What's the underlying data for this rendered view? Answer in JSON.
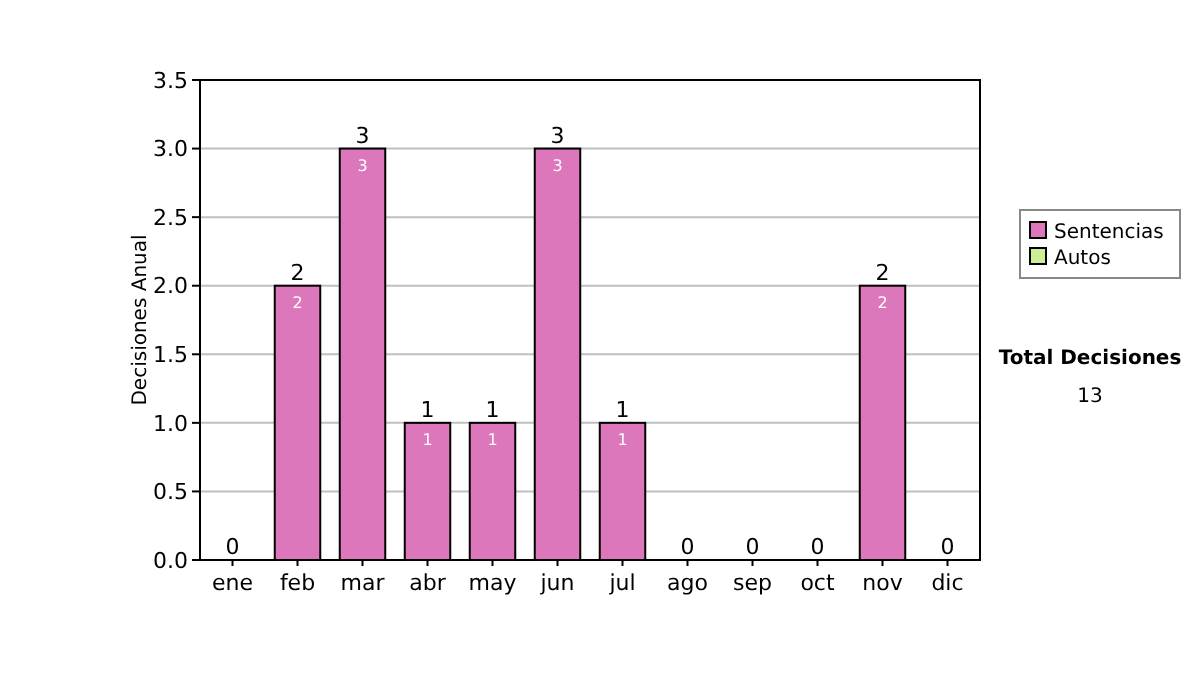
{
  "chart_data": {
    "type": "bar",
    "stacked": true,
    "ylabel": "Decisiones Anual",
    "categories": [
      "ene",
      "feb",
      "mar",
      "abr",
      "may",
      "jun",
      "jul",
      "ago",
      "sep",
      "oct",
      "nov",
      "dic"
    ],
    "series": [
      {
        "name": "Sentencias",
        "color": "#dd77bb",
        "values": [
          0,
          2,
          3,
          1,
          1,
          3,
          1,
          0,
          0,
          0,
          2,
          0
        ],
        "value_labels": [
          null,
          "2",
          "3",
          "1",
          "1",
          "3",
          "1",
          null,
          null,
          null,
          "2",
          null
        ]
      },
      {
        "name": "Autos",
        "color": "#ccee99",
        "values": [
          0,
          0,
          0,
          0,
          0,
          0,
          0,
          0,
          0,
          0,
          0,
          0
        ]
      }
    ],
    "totals": [
      "0",
      "2",
      "3",
      "1",
      "1",
      "3",
      "1",
      "0",
      "0",
      "0",
      "2",
      "0"
    ],
    "ylim": [
      0,
      3.5
    ],
    "yticks": [
      {
        "value": 0,
        "label": "0.0"
      },
      {
        "value": 0.5,
        "label": "0.5"
      },
      {
        "value": 1,
        "label": "1.0"
      },
      {
        "value": 1.5,
        "label": "1.5"
      },
      {
        "value": 2,
        "label": "2.0"
      },
      {
        "value": 2.5,
        "label": "2.5"
      },
      {
        "value": 3,
        "label": "3.0"
      },
      {
        "value": 3.5,
        "label": "3.5"
      }
    ],
    "grid": "y",
    "legend": "right",
    "annotations": [
      "Total Decisiones",
      "13"
    ]
  }
}
